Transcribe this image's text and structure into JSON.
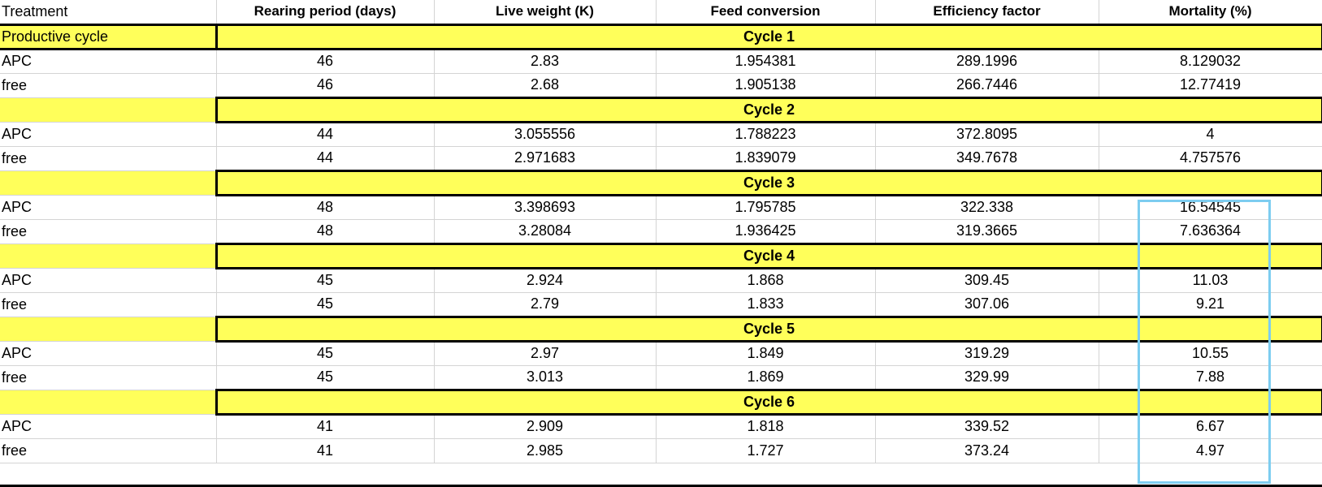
{
  "headers": [
    "Treatment",
    "Rearing period (days)",
    "Live weight (K)",
    "Feed conversion",
    "Efficiency factor",
    "Mortality (%)"
  ],
  "productive_cycle_label": "Productive cycle",
  "cycles": [
    {
      "label": "Cycle 1",
      "rows": [
        {
          "treatment": "APC",
          "rearing": "46",
          "weight": "2.83",
          "feed": "1.954381",
          "efficiency": "289.1996",
          "mortality": "8.129032"
        },
        {
          "treatment": "free",
          "rearing": "46",
          "weight": "2.68",
          "feed": "1.905138",
          "efficiency": "266.7446",
          "mortality": "12.77419"
        }
      ]
    },
    {
      "label": "Cycle 2",
      "rows": [
        {
          "treatment": "APC",
          "rearing": "44",
          "weight": "3.055556",
          "feed": "1.788223",
          "efficiency": "372.8095",
          "mortality": "4"
        },
        {
          "treatment": "free",
          "rearing": "44",
          "weight": "2.971683",
          "feed": "1.839079",
          "efficiency": "349.7678",
          "mortality": "4.757576"
        }
      ]
    },
    {
      "label": "Cycle 3",
      "rows": [
        {
          "treatment": "APC",
          "rearing": "48",
          "weight": "3.398693",
          "feed": "1.795785",
          "efficiency": "322.338",
          "mortality": "16.54545"
        },
        {
          "treatment": "free",
          "rearing": "48",
          "weight": "3.28084",
          "feed": "1.936425",
          "efficiency": "319.3665",
          "mortality": "7.636364"
        }
      ]
    },
    {
      "label": "Cycle 4",
      "rows": [
        {
          "treatment": "APC",
          "rearing": "45",
          "weight": "2.924",
          "feed": "1.868",
          "efficiency": "309.45",
          "mortality": "11.03"
        },
        {
          "treatment": "free",
          "rearing": "45",
          "weight": "2.79",
          "feed": "1.833",
          "efficiency": "307.06",
          "mortality": "9.21"
        }
      ]
    },
    {
      "label": "Cycle 5",
      "rows": [
        {
          "treatment": "APC",
          "rearing": "45",
          "weight": "2.97",
          "feed": "1.849",
          "efficiency": "319.29",
          "mortality": "10.55"
        },
        {
          "treatment": "free",
          "rearing": "45",
          "weight": "3.013",
          "feed": "1.869",
          "efficiency": "329.99",
          "mortality": "7.88"
        }
      ]
    },
    {
      "label": "Cycle 6",
      "rows": [
        {
          "treatment": "APC",
          "rearing": "41",
          "weight": "2.909",
          "feed": "1.818",
          "efficiency": "339.52",
          "mortality": "6.67"
        },
        {
          "treatment": "free",
          "rearing": "41",
          "weight": "2.985",
          "feed": "1.727",
          "efficiency": "373.24",
          "mortality": "4.97"
        }
      ]
    }
  ],
  "colors": {
    "cycle_fill": "#ffff5a",
    "highlight_border": "#7dcdf0",
    "grid": "#d4d4d4"
  }
}
